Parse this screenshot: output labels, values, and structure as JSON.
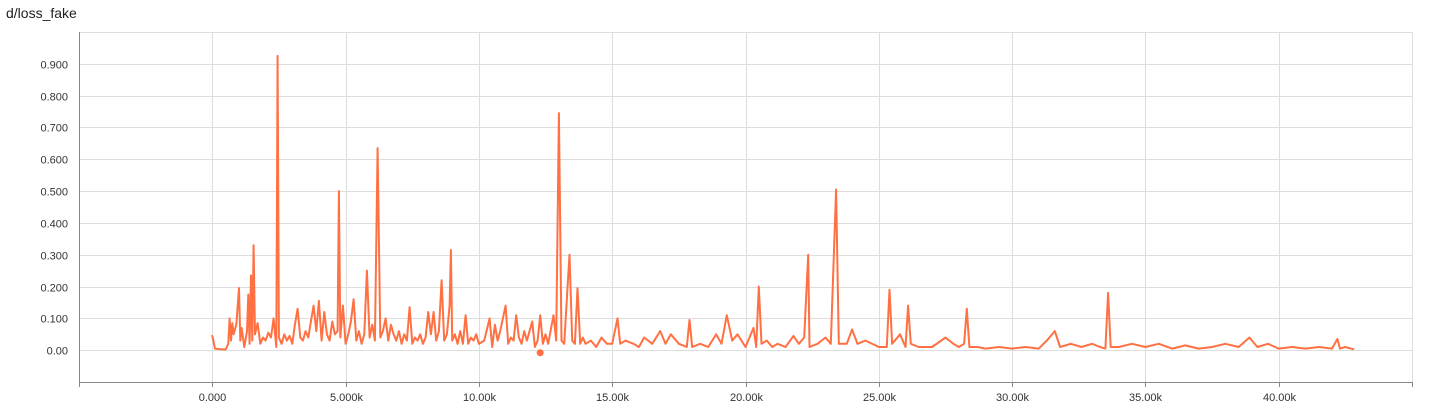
{
  "chart_data": {
    "type": "line",
    "title": "d/loss_fake",
    "xlabel": "",
    "ylabel": "",
    "xlim": [
      -5000,
      45000
    ],
    "ylim": [
      -0.1,
      1.0
    ],
    "x_ticks": [
      0,
      5000,
      10000,
      15000,
      20000,
      25000,
      30000,
      35000,
      40000
    ],
    "x_tick_labels": [
      "0.000",
      "5.000k",
      "10.00k",
      "15.00k",
      "20.00k",
      "25.00k",
      "30.00k",
      "35.00k",
      "40.00k"
    ],
    "y_ticks": [
      0,
      0.1,
      0.2,
      0.3,
      0.4,
      0.5,
      0.6,
      0.7,
      0.8,
      0.9
    ],
    "y_tick_labels": [
      "0.00",
      "0.100",
      "0.200",
      "0.300",
      "0.400",
      "0.500",
      "0.600",
      "0.700",
      "0.800",
      "0.900"
    ],
    "grid": true,
    "legend": "none",
    "series": [
      {
        "color": "#ff7043",
        "points": [
          [
            0,
            0.045
          ],
          [
            100,
            0.005
          ],
          [
            300,
            0.003
          ],
          [
            500,
            0.002
          ],
          [
            600,
            0.02
          ],
          [
            650,
            0.1
          ],
          [
            700,
            0.03
          ],
          [
            750,
            0.085
          ],
          [
            800,
            0.05
          ],
          [
            900,
            0.08
          ],
          [
            1000,
            0.195
          ],
          [
            1050,
            0.03
          ],
          [
            1100,
            0.07
          ],
          [
            1200,
            0.01
          ],
          [
            1300,
            0.06
          ],
          [
            1350,
            0.175
          ],
          [
            1400,
            0.02
          ],
          [
            1450,
            0.235
          ],
          [
            1500,
            0.03
          ],
          [
            1550,
            0.33
          ],
          [
            1600,
            0.05
          ],
          [
            1700,
            0.085
          ],
          [
            1800,
            0.02
          ],
          [
            1900,
            0.04
          ],
          [
            2000,
            0.03
          ],
          [
            2100,
            0.055
          ],
          [
            2200,
            0.04
          ],
          [
            2300,
            0.1
          ],
          [
            2400,
            0.01
          ],
          [
            2450,
            0.925
          ],
          [
            2500,
            0.04
          ],
          [
            2600,
            0.02
          ],
          [
            2700,
            0.05
          ],
          [
            2800,
            0.03
          ],
          [
            2900,
            0.045
          ],
          [
            3000,
            0.02
          ],
          [
            3100,
            0.08
          ],
          [
            3200,
            0.13
          ],
          [
            3300,
            0.04
          ],
          [
            3400,
            0.03
          ],
          [
            3500,
            0.06
          ],
          [
            3600,
            0.04
          ],
          [
            3700,
            0.09
          ],
          [
            3800,
            0.14
          ],
          [
            3900,
            0.06
          ],
          [
            4000,
            0.155
          ],
          [
            4100,
            0.03
          ],
          [
            4200,
            0.12
          ],
          [
            4300,
            0.05
          ],
          [
            4400,
            0.03
          ],
          [
            4500,
            0.09
          ],
          [
            4600,
            0.05
          ],
          [
            4700,
            0.06
          ],
          [
            4750,
            0.5
          ],
          [
            4800,
            0.04
          ],
          [
            4900,
            0.14
          ],
          [
            5000,
            0.02
          ],
          [
            5100,
            0.05
          ],
          [
            5200,
            0.09
          ],
          [
            5300,
            0.16
          ],
          [
            5400,
            0.03
          ],
          [
            5500,
            0.06
          ],
          [
            5600,
            0.02
          ],
          [
            5700,
            0.05
          ],
          [
            5800,
            0.25
          ],
          [
            5900,
            0.04
          ],
          [
            6000,
            0.08
          ],
          [
            6100,
            0.03
          ],
          [
            6200,
            0.635
          ],
          [
            6300,
            0.04
          ],
          [
            6400,
            0.06
          ],
          [
            6500,
            0.1
          ],
          [
            6600,
            0.03
          ],
          [
            6700,
            0.08
          ],
          [
            6800,
            0.05
          ],
          [
            6900,
            0.03
          ],
          [
            7000,
            0.06
          ],
          [
            7100,
            0.02
          ],
          [
            7200,
            0.05
          ],
          [
            7300,
            0.03
          ],
          [
            7400,
            0.135
          ],
          [
            7500,
            0.02
          ],
          [
            7600,
            0.04
          ],
          [
            7700,
            0.03
          ],
          [
            7800,
            0.05
          ],
          [
            7900,
            0.02
          ],
          [
            8000,
            0.04
          ],
          [
            8100,
            0.12
          ],
          [
            8200,
            0.05
          ],
          [
            8300,
            0.12
          ],
          [
            8400,
            0.03
          ],
          [
            8500,
            0.06
          ],
          [
            8600,
            0.22
          ],
          [
            8700,
            0.03
          ],
          [
            8800,
            0.05
          ],
          [
            8900,
            0.14
          ],
          [
            8950,
            0.315
          ],
          [
            9000,
            0.03
          ],
          [
            9100,
            0.05
          ],
          [
            9200,
            0.02
          ],
          [
            9300,
            0.06
          ],
          [
            9400,
            0.02
          ],
          [
            9500,
            0.11
          ],
          [
            9600,
            0.02
          ],
          [
            9700,
            0.04
          ],
          [
            9800,
            0.03
          ],
          [
            9900,
            0.05
          ],
          [
            10000,
            0.02
          ],
          [
            10200,
            0.03
          ],
          [
            10400,
            0.1
          ],
          [
            10500,
            0.01
          ],
          [
            10600,
            0.08
          ],
          [
            10700,
            0.03
          ],
          [
            10800,
            0.06
          ],
          [
            11000,
            0.14
          ],
          [
            11100,
            0.02
          ],
          [
            11200,
            0.04
          ],
          [
            11300,
            0.03
          ],
          [
            11400,
            0.11
          ],
          [
            11500,
            0.04
          ],
          [
            11600,
            0.02
          ],
          [
            11700,
            0.06
          ],
          [
            11800,
            0.03
          ],
          [
            12000,
            0.09
          ],
          [
            12100,
            0.01
          ],
          [
            12200,
            0.03
          ],
          [
            12300,
            0.11
          ],
          [
            12400,
            0.02
          ],
          [
            12500,
            0.05
          ],
          [
            12600,
            0.02
          ],
          [
            12800,
            0.11
          ],
          [
            12900,
            0.03
          ],
          [
            13000,
            0.745
          ],
          [
            13100,
            0.03
          ],
          [
            13200,
            0.02
          ],
          [
            13400,
            0.3
          ],
          [
            13500,
            0.03
          ],
          [
            13600,
            0.02
          ],
          [
            13700,
            0.195
          ],
          [
            13800,
            0.02
          ],
          [
            13900,
            0.04
          ],
          [
            14000,
            0.02
          ],
          [
            14200,
            0.03
          ],
          [
            14400,
            0.01
          ],
          [
            14600,
            0.04
          ],
          [
            14800,
            0.02
          ],
          [
            15000,
            0.02
          ],
          [
            15200,
            0.1
          ],
          [
            15300,
            0.02
          ],
          [
            15500,
            0.03
          ],
          [
            15800,
            0.02
          ],
          [
            16000,
            0.01
          ],
          [
            16200,
            0.04
          ],
          [
            16500,
            0.02
          ],
          [
            16800,
            0.06
          ],
          [
            17000,
            0.02
          ],
          [
            17200,
            0.05
          ],
          [
            17500,
            0.02
          ],
          [
            17800,
            0.01
          ],
          [
            17900,
            0.095
          ],
          [
            18000,
            0.01
          ],
          [
            18300,
            0.02
          ],
          [
            18600,
            0.01
          ],
          [
            18900,
            0.05
          ],
          [
            19100,
            0.02
          ],
          [
            19300,
            0.11
          ],
          [
            19500,
            0.03
          ],
          [
            19700,
            0.05
          ],
          [
            20000,
            0.01
          ],
          [
            20300,
            0.07
          ],
          [
            20400,
            0.01
          ],
          [
            20500,
            0.2
          ],
          [
            20600,
            0.02
          ],
          [
            20800,
            0.03
          ],
          [
            21000,
            0.01
          ],
          [
            21200,
            0.02
          ],
          [
            21500,
            0.01
          ],
          [
            21800,
            0.045
          ],
          [
            22000,
            0.02
          ],
          [
            22200,
            0.04
          ],
          [
            22350,
            0.3
          ],
          [
            22400,
            0.01
          ],
          [
            22700,
            0.02
          ],
          [
            23000,
            0.04
          ],
          [
            23200,
            0.02
          ],
          [
            23400,
            0.505
          ],
          [
            23500,
            0.02
          ],
          [
            23800,
            0.02
          ],
          [
            24000,
            0.065
          ],
          [
            24200,
            0.02
          ],
          [
            24500,
            0.03
          ],
          [
            25000,
            0.01
          ],
          [
            25300,
            0.01
          ],
          [
            25400,
            0.19
          ],
          [
            25500,
            0.02
          ],
          [
            25800,
            0.05
          ],
          [
            26000,
            0.01
          ],
          [
            26100,
            0.14
          ],
          [
            26200,
            0.02
          ],
          [
            26500,
            0.01
          ],
          [
            27000,
            0.01
          ],
          [
            27500,
            0.04
          ],
          [
            27800,
            0.02
          ],
          [
            28000,
            0.01
          ],
          [
            28200,
            0.02
          ],
          [
            28300,
            0.13
          ],
          [
            28400,
            0.01
          ],
          [
            28700,
            0.01
          ],
          [
            29000,
            0.005
          ],
          [
            29500,
            0.01
          ],
          [
            30000,
            0.005
          ],
          [
            30500,
            0.01
          ],
          [
            31000,
            0.005
          ],
          [
            31300,
            0.03
          ],
          [
            31600,
            0.06
          ],
          [
            31800,
            0.01
          ],
          [
            32200,
            0.02
          ],
          [
            32600,
            0.01
          ],
          [
            33000,
            0.02
          ],
          [
            33300,
            0.01
          ],
          [
            33500,
            0.005
          ],
          [
            33600,
            0.18
          ],
          [
            33700,
            0.01
          ],
          [
            34000,
            0.01
          ],
          [
            34500,
            0.02
          ],
          [
            35000,
            0.01
          ],
          [
            35500,
            0.02
          ],
          [
            36000,
            0.005
          ],
          [
            36500,
            0.015
          ],
          [
            37000,
            0.005
          ],
          [
            37500,
            0.01
          ],
          [
            38000,
            0.02
          ],
          [
            38500,
            0.01
          ],
          [
            38900,
            0.04
          ],
          [
            39200,
            0.01
          ],
          [
            39600,
            0.02
          ],
          [
            40000,
            0.005
          ],
          [
            40500,
            0.01
          ],
          [
            41000,
            0.005
          ],
          [
            41500,
            0.01
          ],
          [
            42000,
            0.005
          ],
          [
            42200,
            0.035
          ],
          [
            42300,
            0.005
          ],
          [
            42500,
            0.01
          ],
          [
            42800,
            0.003
          ]
        ]
      }
    ],
    "highlight_point": [
      12300,
      -0.008
    ]
  }
}
